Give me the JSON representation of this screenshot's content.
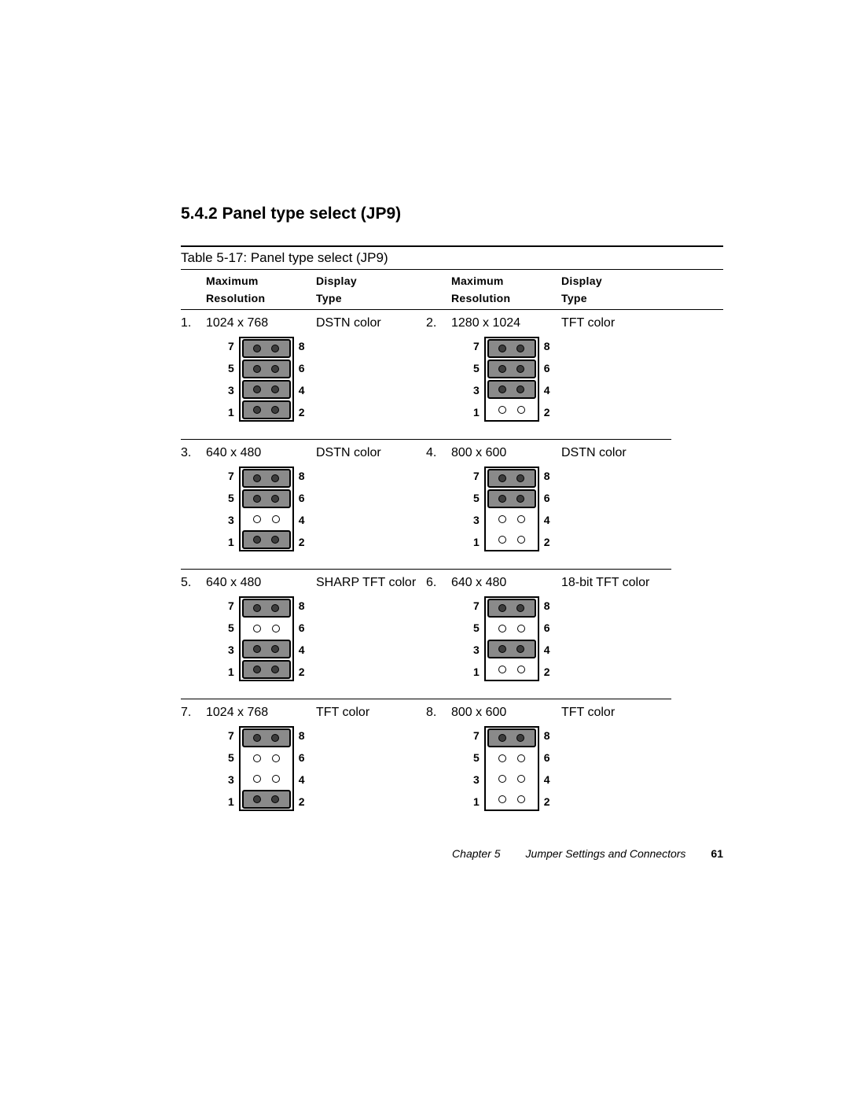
{
  "heading": "5.4.2 Panel type select (JP9)",
  "table_caption": "Table 5-17: Panel type select (JP9)",
  "columns": {
    "left": {
      "header1": "Maximum",
      "header2": "Resolution",
      "header3": "Display",
      "header4": "Type"
    },
    "right": {
      "header1": "Maximum",
      "header2": "Resolution",
      "header3": "Display",
      "header4": "Type"
    }
  },
  "pin_labels": {
    "top_left": "7",
    "top_right": "8",
    "r2_left": "5",
    "r2_right": "6",
    "r3_left": "3",
    "r3_right": "4",
    "bot_left": "1",
    "bot_right": "2"
  },
  "entries": [
    {
      "num": "1.",
      "resolution": "1024 x 768",
      "display": "DSTN color",
      "rows": [
        "closed",
        "closed",
        "closed",
        "closed"
      ]
    },
    {
      "num": "2.",
      "resolution": "1280 x 1024",
      "display": "TFT color",
      "rows": [
        "closed",
        "closed",
        "closed",
        "open"
      ]
    },
    {
      "num": "3.",
      "resolution": "640 x 480",
      "display": "DSTN color",
      "rows": [
        "closed",
        "closed",
        "open",
        "closed"
      ]
    },
    {
      "num": "4.",
      "resolution": "800 x 600",
      "display": "DSTN color",
      "rows": [
        "closed",
        "closed",
        "open",
        "open"
      ]
    },
    {
      "num": "5.",
      "resolution": "640 x 480",
      "display": "SHARP TFT color",
      "rows": [
        "closed",
        "open",
        "closed",
        "closed"
      ]
    },
    {
      "num": "6.",
      "resolution": "640 x 480",
      "display": "18-bit TFT color",
      "rows": [
        "closed",
        "open",
        "closed",
        "open"
      ]
    },
    {
      "num": "7.",
      "resolution": "1024 x 768",
      "display": "TFT color",
      "rows": [
        "closed",
        "open",
        "open",
        "closed"
      ]
    },
    {
      "num": "8.",
      "resolution": "800 x 600",
      "display": "TFT color",
      "rows": [
        "closed",
        "open",
        "open",
        "open"
      ]
    }
  ],
  "footer": {
    "chapter": "Chapter 5",
    "title": "Jumper Settings and Connectors",
    "page": "61"
  },
  "style": {
    "closed_fill": "#8a8a8a",
    "closed_pin_fill": "#3d3d3d",
    "border_color": "#000000",
    "text_color": "#000000",
    "body_font_size": 16,
    "heading_font_size": 21,
    "header_font_size": 14,
    "pin_label_font_size": 14
  }
}
